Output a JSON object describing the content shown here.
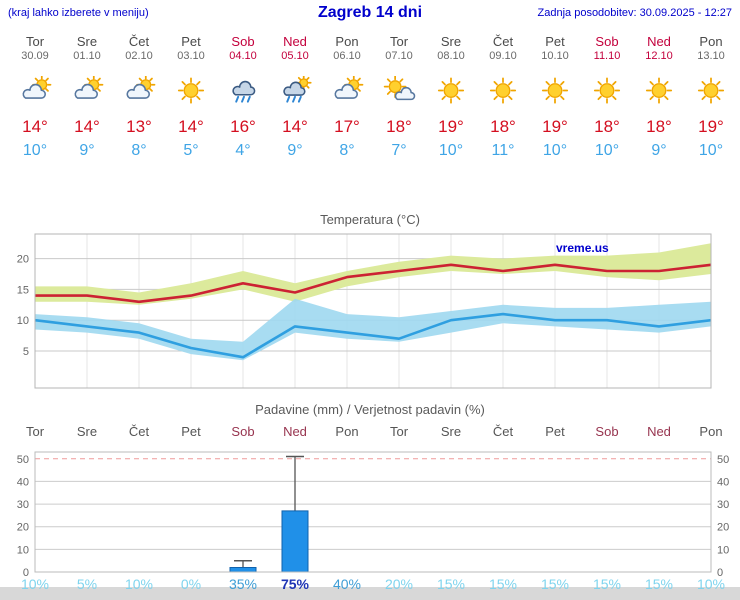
{
  "header": {
    "left_note": "(kraj lahko izberete v meniju)",
    "title": "Zagreb 14 dni",
    "updated": "Zadnja posodobitev: 30.09.2025 - 12:27"
  },
  "days": [
    {
      "name": "Tor",
      "date": "30.09",
      "weekend": false,
      "icon": "cloud-sun",
      "tmax": "14°",
      "tmin": "10°"
    },
    {
      "name": "Sre",
      "date": "01.10",
      "weekend": false,
      "icon": "cloud-sun",
      "tmax": "14°",
      "tmin": "9°"
    },
    {
      "name": "Čet",
      "date": "02.10",
      "weekend": false,
      "icon": "cloud-sun",
      "tmax": "13°",
      "tmin": "8°"
    },
    {
      "name": "Pet",
      "date": "03.10",
      "weekend": false,
      "icon": "sun",
      "tmax": "14°",
      "tmin": "5°"
    },
    {
      "name": "Sob",
      "date": "04.10",
      "weekend": true,
      "icon": "rain",
      "tmax": "16°",
      "tmin": "4°"
    },
    {
      "name": "Ned",
      "date": "05.10",
      "weekend": true,
      "icon": "rain-sun",
      "tmax": "14°",
      "tmin": "9°"
    },
    {
      "name": "Pon",
      "date": "06.10",
      "weekend": false,
      "icon": "cloud-sun",
      "tmax": "17°",
      "tmin": "8°"
    },
    {
      "name": "Tor",
      "date": "07.10",
      "weekend": false,
      "icon": "sun-cloud",
      "tmax": "18°",
      "tmin": "7°"
    },
    {
      "name": "Sre",
      "date": "08.10",
      "weekend": false,
      "icon": "sun",
      "tmax": "19°",
      "tmin": "10°"
    },
    {
      "name": "Čet",
      "date": "09.10",
      "weekend": false,
      "icon": "sun",
      "tmax": "18°",
      "tmin": "11°"
    },
    {
      "name": "Pet",
      "date": "10.10",
      "weekend": false,
      "icon": "sun",
      "tmax": "19°",
      "tmin": "10°"
    },
    {
      "name": "Sob",
      "date": "11.10",
      "weekend": true,
      "icon": "sun",
      "tmax": "18°",
      "tmin": "10°"
    },
    {
      "name": "Ned",
      "date": "12.10",
      "weekend": true,
      "icon": "sun",
      "tmax": "18°",
      "tmin": "9°"
    },
    {
      "name": "Pon",
      "date": "13.10",
      "weekend": false,
      "icon": "sun",
      "tmax": "19°",
      "tmin": "10°"
    }
  ],
  "chart_data": [
    {
      "type": "line",
      "title": "Temperatura (°C)",
      "watermark": "vreme.us",
      "x_labels": [
        "Tor",
        "Sre",
        "Čet",
        "Pet",
        "Sob",
        "Ned",
        "Pon",
        "Tor",
        "Sre",
        "Čet",
        "Pet",
        "Sob",
        "Ned",
        "Pon"
      ],
      "ylim": [
        -1,
        24
      ],
      "yticks": [
        5,
        10,
        15,
        20
      ],
      "legend": "red = max temperature with spread band, blue = min temperature with spread band",
      "series": [
        {
          "name": "temp_max",
          "values": [
            14,
            14,
            13,
            14,
            16,
            14.5,
            17,
            18,
            19,
            18,
            19,
            18,
            18,
            19
          ]
        },
        {
          "name": "temp_max_band_upper",
          "values": [
            15.5,
            15.5,
            14.5,
            16,
            18,
            16,
            18,
            19.5,
            20.5,
            20,
            20.5,
            20.5,
            21,
            22.5
          ]
        },
        {
          "name": "temp_max_band_lower",
          "values": [
            13,
            13,
            12.5,
            13.5,
            15,
            13,
            15.5,
            17,
            18,
            17.5,
            18,
            17,
            16.5,
            17.5
          ]
        },
        {
          "name": "temp_min",
          "values": [
            10,
            9,
            8,
            5.5,
            4,
            9,
            8,
            7,
            10,
            11,
            10,
            10,
            9,
            10
          ]
        },
        {
          "name": "temp_min_band_upper",
          "values": [
            11,
            10.5,
            9.5,
            7,
            6.5,
            13.5,
            11,
            10.5,
            11.5,
            12.5,
            12,
            12,
            12.5,
            13
          ]
        },
        {
          "name": "temp_min_band_lower",
          "values": [
            8.5,
            8,
            7,
            4.5,
            3.5,
            8,
            7,
            6.5,
            8,
            9.5,
            9,
            8.5,
            8,
            9
          ]
        }
      ]
    },
    {
      "type": "bar",
      "title": "Padavine (mm) / Verjetnost padavin (%)",
      "x_labels": [
        "Tor",
        "Sre",
        "Čet",
        "Pet",
        "Sob",
        "Ned",
        "Pon",
        "Tor",
        "Sre",
        "Čet",
        "Pet",
        "Sob",
        "Ned",
        "Pon"
      ],
      "x_weekend": [
        false,
        false,
        false,
        false,
        true,
        true,
        false,
        false,
        false,
        false,
        false,
        true,
        true,
        false
      ],
      "ylim": [
        0,
        53
      ],
      "yticks": [
        0,
        10,
        20,
        30,
        40,
        50
      ],
      "precip_mm": [
        0,
        0,
        0,
        0,
        2,
        27,
        0,
        0,
        0,
        0,
        0,
        0,
        0,
        0
      ],
      "precip_max_mm": [
        0,
        0,
        0,
        0,
        5,
        51,
        0,
        0,
        0,
        0,
        0,
        0,
        0,
        0
      ],
      "probability": [
        "10%",
        "5%",
        "10%",
        "0%",
        "35%",
        "75%",
        "40%",
        "20%",
        "15%",
        "15%",
        "15%",
        "15%",
        "15%",
        "10%"
      ],
      "probability_emphasis": [
        "low",
        "low",
        "low",
        "low",
        "mid",
        "high",
        "mid",
        "low",
        "low",
        "low",
        "low",
        "low",
        "low",
        "low"
      ]
    }
  ],
  "colors": {
    "link_blue": "#0000cc",
    "weekday_gray": "#4a4a4a",
    "date_gray": "#6a6a6a",
    "weekend_red": "#c3003c",
    "weekend_dark": "#97344f",
    "tmax_red": "#d40f20",
    "tmin_blue": "#3fa5e6",
    "temp_line_max": "#cc2233",
    "temp_line_min": "#2f9fe0",
    "band_max": "#dcea9c",
    "band_min": "#9fd8ef",
    "bar_fill": "#2090e8",
    "bar_stroke": "#0f62ad",
    "prob_low": "#7fd4ee",
    "prob_mid": "#3e9ed6",
    "prob_high": "#1f35b5",
    "grid_red_dashed": "#ef9a9a"
  }
}
